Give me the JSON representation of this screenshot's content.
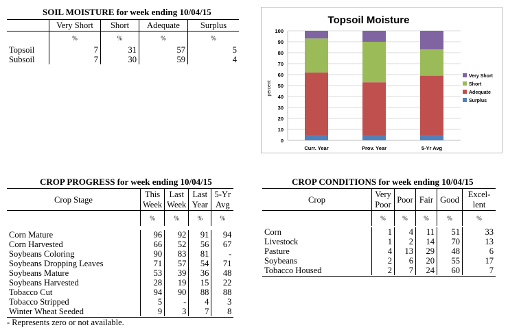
{
  "soil": {
    "title": "SOIL MOISTURE for week ending 10/04/15",
    "headers": [
      "Very Short",
      "Short",
      "Adequate",
      "Surplus"
    ],
    "pct": "%",
    "rows": [
      {
        "label": "Topsoil",
        "values": [
          "7",
          "31",
          "57",
          "5"
        ]
      },
      {
        "label": "Subsoil",
        "values": [
          "7",
          "30",
          "59",
          "4"
        ]
      }
    ]
  },
  "chart_data": {
    "type": "bar",
    "stacked": true,
    "title": "Topsoil Moisture",
    "ylabel": "percent",
    "ylim": [
      0,
      100
    ],
    "yticks": [
      "0",
      "10",
      "20",
      "30",
      "40",
      "50",
      "60",
      "70",
      "80",
      "90",
      "100"
    ],
    "categories": [
      "Curr. Year",
      "Prov. Year",
      "5-Yr Avg"
    ],
    "series": [
      {
        "name": "Surplus",
        "color": "#4f81bd",
        "values": [
          5,
          4,
          5
        ]
      },
      {
        "name": "Adequate",
        "color": "#c0504d",
        "values": [
          57,
          49,
          54
        ]
      },
      {
        "name": "Short",
        "color": "#9bbb59",
        "values": [
          31,
          37,
          24
        ]
      },
      {
        "name": "Very Short",
        "color": "#8064a2",
        "values": [
          7,
          10,
          17
        ]
      }
    ],
    "legend_position": "right",
    "grid": true
  },
  "progress": {
    "title": "CROP PROGRESS for week ending 10/04/15",
    "stage_header": "Crop Stage",
    "col_top": [
      "This",
      "Last",
      "Last",
      "5-Yr"
    ],
    "col_bottom": [
      "Week",
      "Week",
      "Year",
      "Avg"
    ],
    "pct": "%",
    "rows": [
      {
        "label": "Corn Mature",
        "values": [
          "96",
          "92",
          "91",
          "94"
        ]
      },
      {
        "label": "Corn Harvested",
        "values": [
          "66",
          "52",
          "56",
          "67"
        ]
      },
      {
        "label": "Soybeans Coloring",
        "values": [
          "90",
          "83",
          "81",
          "-"
        ]
      },
      {
        "label": "Soybeans Dropping Leaves",
        "values": [
          "71",
          "57",
          "54",
          "71"
        ]
      },
      {
        "label": "Soybeans Mature",
        "values": [
          "53",
          "39",
          "36",
          "48"
        ]
      },
      {
        "label": "Soybeans Harvested",
        "values": [
          "28",
          "19",
          "15",
          "22"
        ]
      },
      {
        "label": "Tobacco Cut",
        "values": [
          "94",
          "90",
          "88",
          "88"
        ]
      },
      {
        "label": "Tobacco Stripped",
        "values": [
          "5",
          "-",
          "4",
          "3"
        ]
      },
      {
        "label": "Winter Wheat Seeded",
        "values": [
          "9",
          "3",
          "7",
          "8"
        ]
      }
    ],
    "note": "- Represents zero or not available."
  },
  "conditions": {
    "title": "CROP CONDITIONS for week ending 10/04/15",
    "crop_header": "Crop",
    "col_top": [
      "Very",
      "Poor",
      "Fair",
      "Good",
      "Excel-"
    ],
    "col_bottom": [
      "Poor",
      "",
      "",
      "",
      "lent"
    ],
    "pct": "%",
    "rows": [
      {
        "label": "Corn",
        "values": [
          "1",
          "4",
          "11",
          "51",
          "33"
        ]
      },
      {
        "label": "Livestock",
        "values": [
          "1",
          "2",
          "14",
          "70",
          "13"
        ]
      },
      {
        "label": "Pasture",
        "values": [
          "4",
          "13",
          "29",
          "48",
          "6"
        ]
      },
      {
        "label": "Soybeans",
        "values": [
          "2",
          "6",
          "20",
          "55",
          "17"
        ]
      },
      {
        "label": "Tobacco Housed",
        "values": [
          "2",
          "7",
          "24",
          "60",
          "7"
        ]
      }
    ]
  }
}
